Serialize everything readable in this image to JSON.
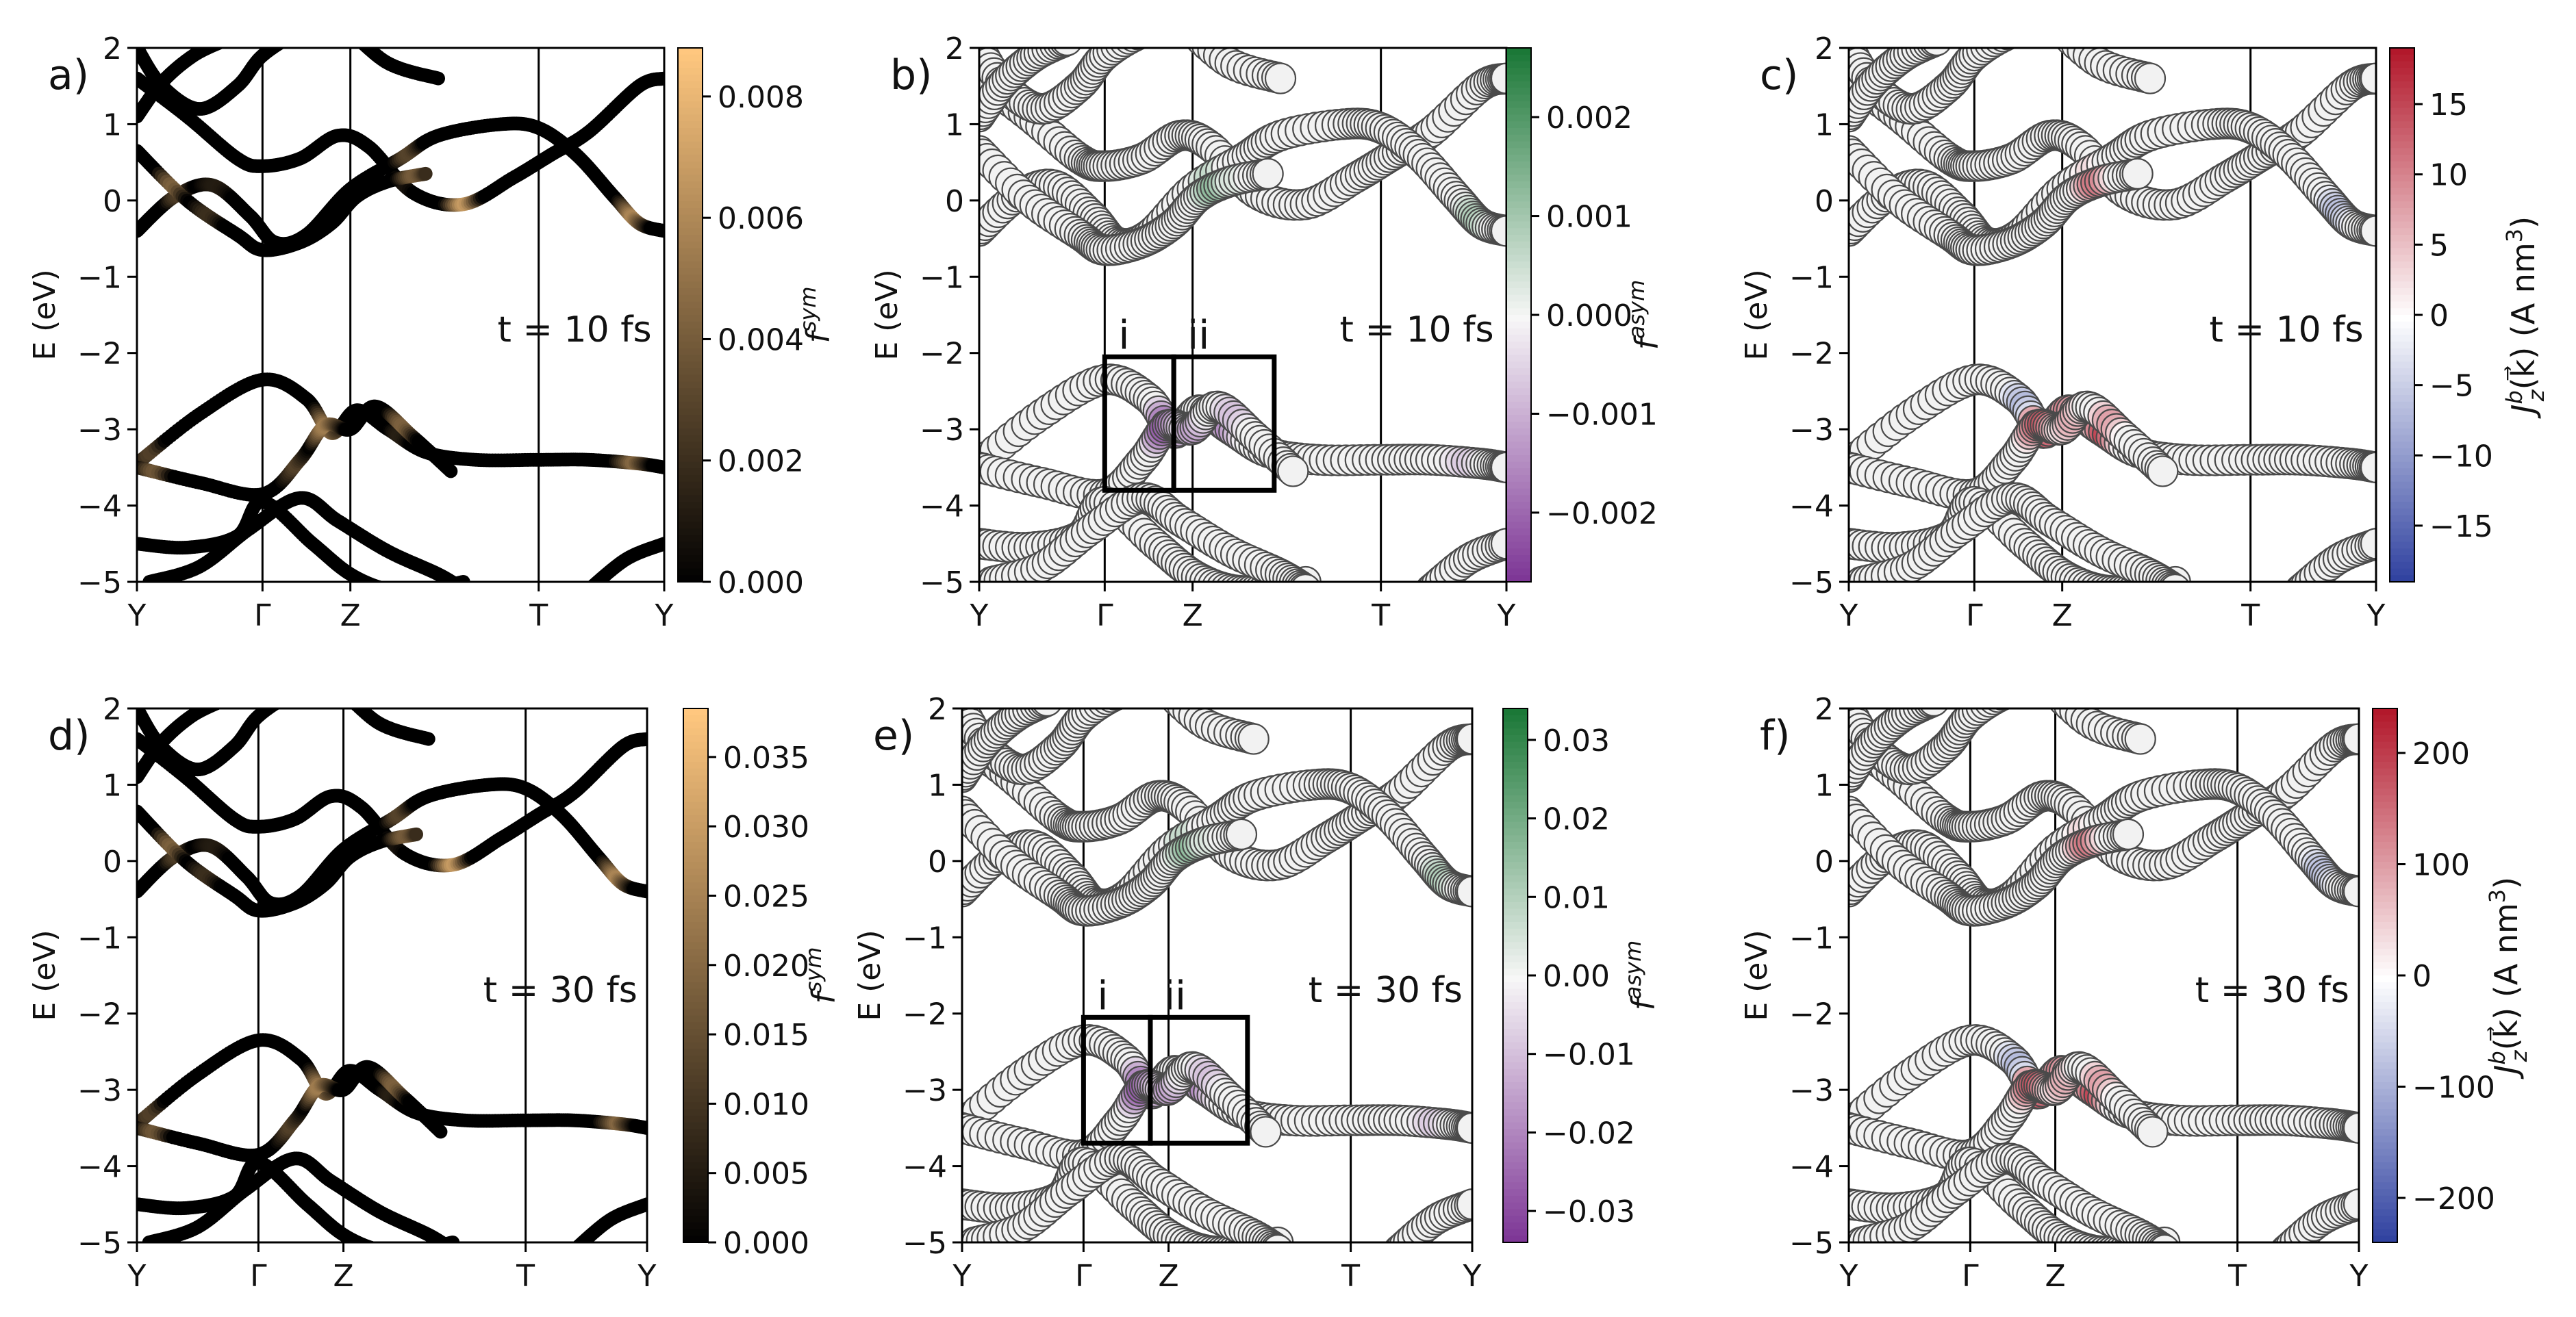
{
  "figure": {
    "title": "Band structure panels"
  },
  "colors": {
    "band_black": "#0a0a0a",
    "marker_fill": "#f2f2f2",
    "marker_edge": "#4a4a4a",
    "copper_low": "#000000",
    "copper_high": "#ffc77f",
    "prgn_low": "#7b3294",
    "prgn_mid": "#f7f7f7",
    "prgn_high": "#1b7837",
    "bwr_low": "#2c3e9e",
    "bwr_high": "#b2182b"
  },
  "chart_data": [
    {
      "panel": "a)",
      "type": "scatter",
      "style": "bands_copper",
      "time_label": "t = 10 fs",
      "ylabel": "E (eV)",
      "ylim": [
        -5,
        2
      ],
      "yticks": [
        "2",
        "1",
        "0",
        "−1",
        "−2",
        "−3",
        "−4",
        "−5"
      ],
      "xticks": [
        "Y",
        "Γ",
        "Z",
        "T",
        "Y"
      ],
      "colorbar": {
        "label": "f^sym",
        "label_main": "f",
        "label_sup": "sym",
        "cmap": "copper",
        "range": [
          0.0,
          0.0088
        ],
        "ticks": [
          "0.000",
          "0.002",
          "0.004",
          "0.006",
          "0.008"
        ],
        "tick_values": [
          0.0,
          0.002,
          0.004,
          0.006,
          0.008
        ]
      },
      "boxes": []
    },
    {
      "panel": "b)",
      "type": "scatter",
      "style": "markers_diverging",
      "time_label": "t = 10 fs",
      "ylabel": "E (eV)",
      "ylim": [
        -5,
        2
      ],
      "yticks": [
        "2",
        "1",
        "0",
        "−1",
        "−2",
        "−3",
        "−4",
        "−5"
      ],
      "xticks": [
        "Y",
        "Γ",
        "Z",
        "T",
        "Y"
      ],
      "colorbar": {
        "label": "f^asym",
        "label_main": "f",
        "label_sup": "asym",
        "cmap": "PRGn",
        "range": [
          -0.0027,
          0.0027
        ],
        "ticks": [
          "0.002",
          "0.001",
          "0.000",
          "−0.001",
          "−0.002"
        ],
        "tick_values": [
          0.002,
          0.001,
          0.0,
          -0.001,
          -0.002
        ]
      },
      "boxes": [
        {
          "label": "i",
          "k_range": [
            1.0,
            1.55
          ],
          "e_range": [
            -3.8,
            -2.05
          ]
        },
        {
          "label": "ii",
          "k_range": [
            1.55,
            2.35
          ],
          "e_range": [
            -3.8,
            -2.05
          ]
        }
      ]
    },
    {
      "panel": "c)",
      "type": "scatter",
      "style": "markers_current",
      "time_label": "t = 10 fs",
      "ylabel": "E (eV)",
      "ylim": [
        -5,
        2
      ],
      "yticks": [
        "2",
        "1",
        "0",
        "−1",
        "−2",
        "−3",
        "−4",
        "−5"
      ],
      "xticks": [
        "Y",
        "Γ",
        "Z",
        "T",
        "Y"
      ],
      "colorbar": {
        "label": "J_z^b(k) (A nm^3)",
        "label_main": "J",
        "label_sub": "z",
        "label_sup": "b",
        "label_rest": "(k⃗) (A nm",
        "label_unit_sup": "3",
        "label_close": ")",
        "cmap": "bwr",
        "range": [
          -19,
          19
        ],
        "ticks": [
          "15",
          "10",
          "5",
          "0",
          "−5",
          "−10",
          "−15"
        ],
        "tick_values": [
          15,
          10,
          5,
          0,
          -5,
          -10,
          -15
        ]
      },
      "boxes": []
    },
    {
      "panel": "d)",
      "type": "scatter",
      "style": "bands_copper",
      "time_label": "t = 30 fs",
      "ylabel": "E (eV)",
      "ylim": [
        -5,
        2
      ],
      "yticks": [
        "2",
        "1",
        "0",
        "−1",
        "−2",
        "−3",
        "−4",
        "−5"
      ],
      "xticks": [
        "Y",
        "Γ",
        "Z",
        "T",
        "Y"
      ],
      "colorbar": {
        "label": "f^sym",
        "label_main": "f",
        "label_sup": "sym",
        "cmap": "copper",
        "range": [
          0.0,
          0.0385
        ],
        "ticks": [
          "0.000",
          "0.005",
          "0.010",
          "0.015",
          "0.020",
          "0.025",
          "0.030",
          "0.035"
        ],
        "tick_values": [
          0.0,
          0.005,
          0.01,
          0.015,
          0.02,
          0.025,
          0.03,
          0.035
        ]
      },
      "boxes": []
    },
    {
      "panel": "e)",
      "type": "scatter",
      "style": "markers_diverging",
      "time_label": "t = 30 fs",
      "ylabel": "E (eV)",
      "ylim": [
        -5,
        2
      ],
      "yticks": [
        "2",
        "1",
        "0",
        "−1",
        "−2",
        "−3",
        "−4",
        "−5"
      ],
      "xticks": [
        "Y",
        "Γ",
        "Z",
        "T",
        "Y"
      ],
      "colorbar": {
        "label": "f^asym",
        "label_main": "f",
        "label_sup": "asym",
        "cmap": "PRGn",
        "range": [
          -0.034,
          0.034
        ],
        "ticks": [
          "0.03",
          "0.02",
          "0.01",
          "0.00",
          "−0.01",
          "−0.02",
          "−0.03"
        ],
        "tick_values": [
          0.03,
          0.02,
          0.01,
          0.0,
          -0.01,
          -0.02,
          -0.03
        ]
      },
      "boxes": [
        {
          "label": "i",
          "k_range": [
            1.0,
            1.55
          ],
          "e_range": [
            -3.7,
            -2.05
          ]
        },
        {
          "label": "ii",
          "k_range": [
            1.55,
            2.35
          ],
          "e_range": [
            -3.7,
            -2.05
          ]
        }
      ]
    },
    {
      "panel": "f)",
      "type": "scatter",
      "style": "markers_current",
      "time_label": "t = 30 fs",
      "ylabel": "E (eV)",
      "ylim": [
        -5,
        2
      ],
      "yticks": [
        "2",
        "1",
        "0",
        "−1",
        "−2",
        "−3",
        "−4",
        "−5"
      ],
      "xticks": [
        "Y",
        "Γ",
        "Z",
        "T",
        "Y"
      ],
      "colorbar": {
        "label": "J_z^b(k) (A nm^3)",
        "label_main": "J",
        "label_sub": "z",
        "label_sup": "b",
        "label_rest": "(k⃗) (A nm",
        "label_unit_sup": "3",
        "label_close": ")",
        "cmap": "bwr",
        "range": [
          -240,
          240
        ],
        "ticks": [
          "200",
          "100",
          "0",
          "−100",
          "−200"
        ],
        "tick_values": [
          200,
          100,
          0,
          -100,
          -200
        ]
      },
      "boxes": []
    }
  ],
  "bands": {
    "k_nodes": [
      0,
      1,
      1.7,
      3.2,
      4.2
    ],
    "curves": [
      {
        "name": "b1",
        "k": [
          0,
          0.4,
          0.8,
          1.0,
          1.3,
          1.6,
          1.85,
          2.2,
          2.6,
          3.0,
          3.3,
          3.6,
          4.0,
          4.2
        ],
        "e": [
          1.6,
          1.1,
          0.55,
          0.45,
          0.55,
          0.85,
          0.7,
          0.1,
          -0.05,
          0.3,
          0.6,
          0.9,
          1.5,
          1.6
        ]
      },
      {
        "name": "b2",
        "k": [
          0,
          0.3,
          0.6,
          0.9,
          1.1,
          1.35,
          1.7,
          2.1,
          2.4,
          2.9,
          3.2,
          3.5,
          3.8,
          4.0,
          4.2
        ],
        "e": [
          -0.4,
          0.05,
          0.2,
          -0.2,
          -0.55,
          -0.45,
          0.15,
          0.55,
          0.85,
          1.0,
          0.95,
          0.6,
          0.05,
          -0.3,
          -0.4
        ]
      },
      {
        "name": "b3",
        "k": [
          0,
          0.4,
          0.8,
          1.0,
          1.3,
          1.55,
          1.75,
          2.0,
          2.3
        ],
        "e": [
          0.65,
          0.0,
          -0.45,
          -0.65,
          -0.55,
          -0.3,
          0.05,
          0.25,
          0.35
        ]
      },
      {
        "name": "b4",
        "k": [
          0,
          0.2,
          0.5,
          0.8,
          1.0,
          1.3,
          1.6,
          2.0,
          2.4
        ],
        "e": [
          2.0,
          1.5,
          1.2,
          1.5,
          1.9,
          2.2,
          2.3,
          1.8,
          1.6
        ]
      },
      {
        "name": "b5",
        "k": [
          0,
          0.5,
          1.0,
          1.35,
          1.55,
          1.75,
          2.0,
          2.3,
          2.7,
          3.2,
          3.6,
          4.0,
          4.2
        ],
        "e": [
          -3.45,
          -2.8,
          -2.35,
          -2.6,
          -3.05,
          -2.75,
          -3.0,
          -3.3,
          -3.4,
          -3.4,
          -3.4,
          -3.45,
          -3.5
        ]
      },
      {
        "name": "b6",
        "k": [
          0,
          0.5,
          1.0,
          1.3,
          1.5,
          1.7,
          1.9,
          2.2,
          2.5
        ],
        "e": [
          -3.5,
          -3.7,
          -3.85,
          -3.4,
          -2.95,
          -3.0,
          -2.7,
          -3.1,
          -3.55
        ]
      },
      {
        "name": "b7",
        "k": [
          0,
          0.4,
          0.8,
          1.0,
          1.4,
          1.7,
          2.0,
          2.3,
          2.6
        ],
        "e": [
          -4.5,
          -4.55,
          -4.4,
          -3.95,
          -4.5,
          -4.9,
          -5.1,
          -5.1,
          -5.0
        ]
      },
      {
        "name": "b8",
        "k": [
          0.1,
          0.5,
          0.9,
          1.3,
          1.6,
          2.0,
          2.4,
          2.6
        ],
        "e": [
          -5.0,
          -4.8,
          -4.3,
          -3.9,
          -4.2,
          -4.6,
          -4.9,
          -5.1
        ]
      },
      {
        "name": "b9",
        "k": [
          3.6,
          3.9,
          4.2
        ],
        "e": [
          -5.1,
          -4.7,
          -4.5
        ]
      },
      {
        "name": "b10",
        "k": [
          0,
          0.2,
          0.45,
          0.7
        ],
        "e": [
          1.1,
          1.55,
          1.9,
          2.1
        ]
      }
    ],
    "highlights": {
      "copper": [
        {
          "k": 2.6,
          "e": 0.0,
          "w": 1.0
        },
        {
          "k": 2.2,
          "e": 0.45,
          "w": 0.8
        },
        {
          "k": 0.3,
          "e": 0.25,
          "w": 0.7
        },
        {
          "k": 0.6,
          "e": -0.05,
          "w": 0.5
        },
        {
          "k": 3.95,
          "e": -0.2,
          "w": 0.8
        },
        {
          "k": 1.5,
          "e": -3.0,
          "w": 0.8
        },
        {
          "k": 2.15,
          "e": -2.85,
          "w": 0.9
        },
        {
          "k": 0.15,
          "e": -3.45,
          "w": 0.7
        },
        {
          "k": 3.95,
          "e": -3.45,
          "w": 0.6
        },
        {
          "k": 1.25,
          "e": -3.45,
          "w": 0.4
        }
      ],
      "diverging": [
        {
          "k": 1.45,
          "e": 0.2,
          "w": 0.9
        },
        {
          "k": 1.9,
          "e": 0.15,
          "w": 0.6
        },
        {
          "k": 2.05,
          "e": 0.05,
          "w": 0.4
        },
        {
          "k": 3.95,
          "e": -0.35,
          "w": 0.5
        },
        {
          "k": 1.5,
          "e": -3.0,
          "w": -1.0
        },
        {
          "k": 1.75,
          "e": -3.1,
          "w": -0.8
        },
        {
          "k": 2.0,
          "e": -3.0,
          "w": -0.6
        },
        {
          "k": 3.9,
          "e": -3.5,
          "w": -0.3
        }
      ],
      "current": [
        {
          "k": 1.45,
          "e": 0.25,
          "w": 1.0
        },
        {
          "k": 2.0,
          "e": 0.15,
          "w": 0.9
        },
        {
          "k": 3.95,
          "e": -0.1,
          "w": -0.5
        },
        {
          "k": 1.4,
          "e": -2.7,
          "w": -0.4
        },
        {
          "k": 1.55,
          "e": -3.0,
          "w": 1.0
        },
        {
          "k": 2.05,
          "e": -3.1,
          "w": 1.0
        },
        {
          "k": 1.75,
          "e": -2.75,
          "w": 0.6
        },
        {
          "k": 2.0,
          "e": -3.2,
          "w": -0.4
        }
      ]
    }
  }
}
